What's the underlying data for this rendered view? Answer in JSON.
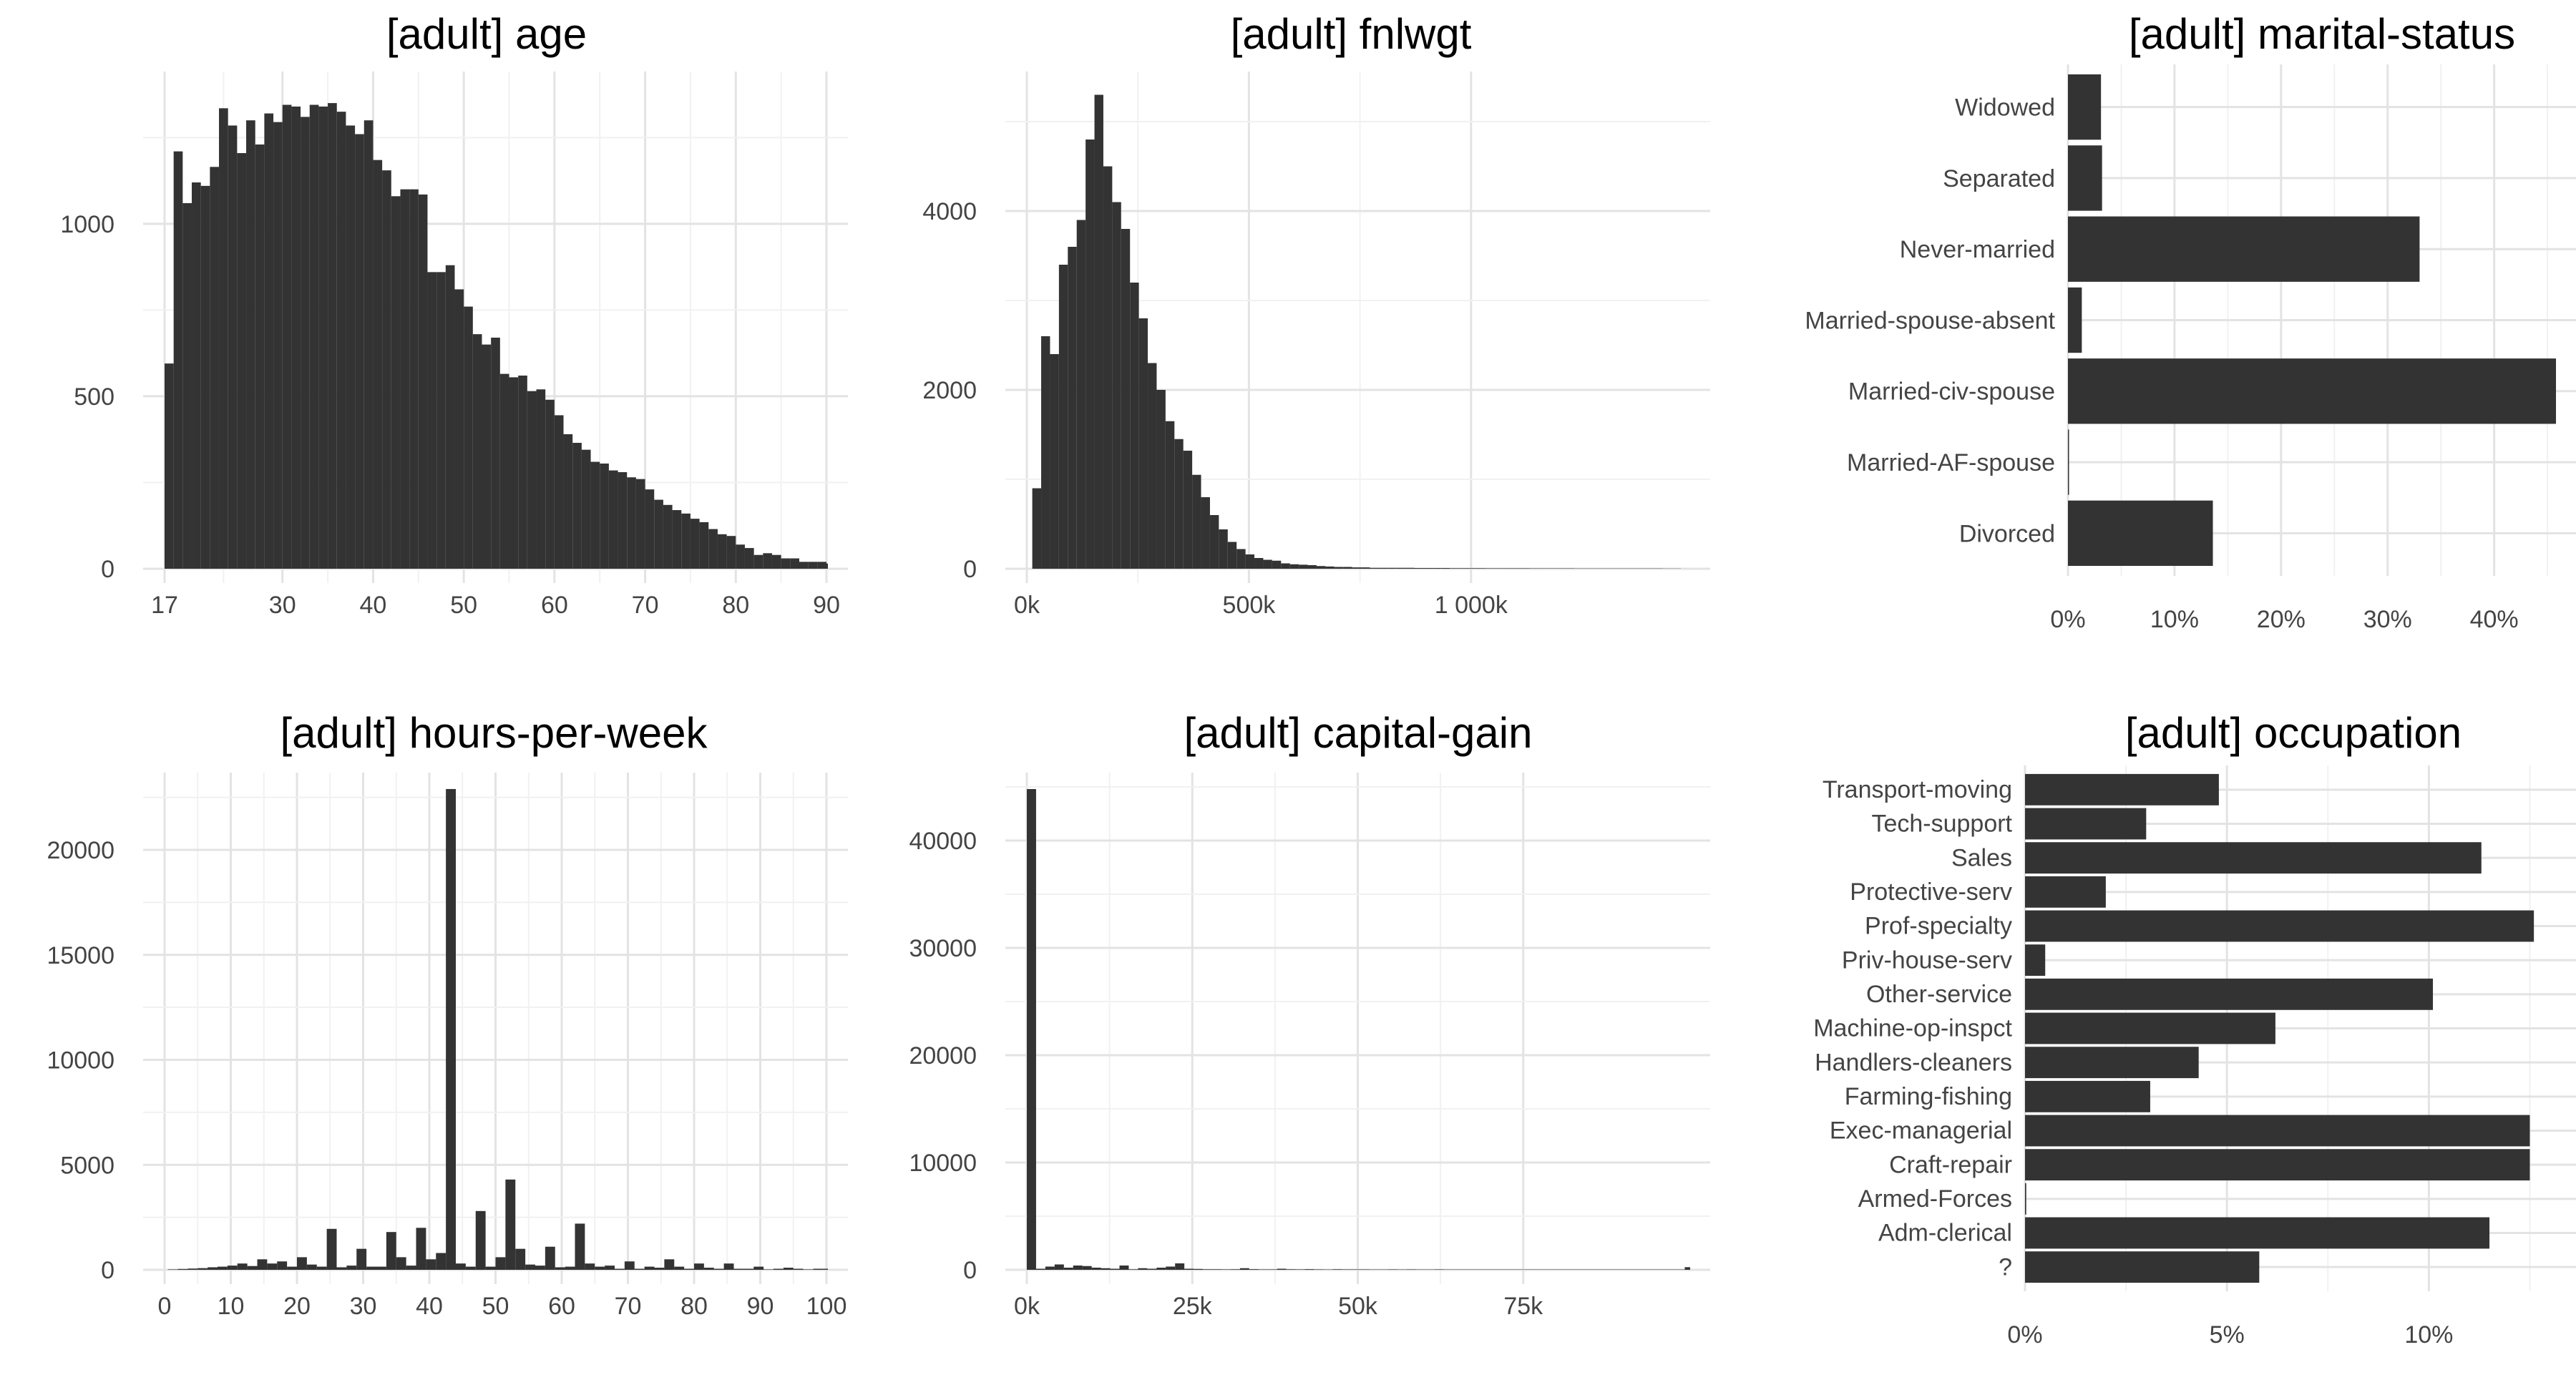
{
  "chart_data": [
    {
      "type": "bar",
      "title": "[adult] age",
      "xlabel": "",
      "ylabel": "",
      "bin_start": 17,
      "bin_width": 1,
      "values": [
        595,
        1210,
        1060,
        1120,
        1110,
        1165,
        1335,
        1285,
        1205,
        1300,
        1230,
        1320,
        1295,
        1345,
        1340,
        1310,
        1345,
        1340,
        1350,
        1325,
        1285,
        1260,
        1300,
        1185,
        1155,
        1080,
        1100,
        1100,
        1085,
        860,
        860,
        880,
        810,
        760,
        680,
        650,
        670,
        565,
        555,
        560,
        515,
        520,
        490,
        445,
        390,
        365,
        345,
        310,
        305,
        285,
        280,
        265,
        260,
        230,
        200,
        185,
        170,
        160,
        145,
        135,
        115,
        100,
        95,
        70,
        60,
        40,
        45,
        40,
        30,
        30,
        20,
        20,
        20,
        15,
        15,
        10,
        10,
        10,
        5,
        5,
        5,
        5,
        5,
        5,
        5,
        5,
        5,
        5,
        5,
        5,
        5,
        5,
        10,
        15
      ],
      "xlim": [
        17,
        90
      ],
      "ylim": [
        0,
        1400
      ],
      "xticks": [
        17,
        30,
        40,
        50,
        60,
        70,
        80,
        90
      ],
      "xtick_labels": [
        "17",
        "30",
        "40",
        "50",
        "60",
        "70",
        "80",
        "90"
      ],
      "yticks": [
        0,
        500,
        1000
      ],
      "ytick_labels": [
        "0",
        "500",
        "1000"
      ],
      "grid": true
    },
    {
      "type": "bar",
      "title": "[adult] fnlwgt",
      "xlabel": "",
      "ylabel": "",
      "bin_start": 12285,
      "bin_width": 20000,
      "values": [
        900,
        2600,
        2400,
        3400,
        3600,
        3900,
        4800,
        5300,
        4500,
        4100,
        3800,
        3200,
        2800,
        2300,
        2000,
        1650,
        1450,
        1320,
        1050,
        800,
        600,
        440,
        300,
        220,
        160,
        120,
        100,
        90,
        60,
        50,
        45,
        40,
        30,
        25,
        20,
        20,
        15,
        15,
        10,
        10,
        10,
        10,
        10,
        8,
        8,
        8,
        8,
        6,
        6,
        6,
        6,
        5,
        5,
        5,
        5,
        5,
        4,
        4,
        4,
        4,
        4,
        3,
        3,
        3,
        3,
        3,
        3,
        3,
        3,
        3,
        3,
        2,
        2
      ],
      "xlim": [
        0,
        1490000
      ],
      "ylim": [
        0,
        5400
      ],
      "xticks": [
        0,
        500000,
        1000000
      ],
      "xtick_labels": [
        "0k",
        "500k",
        "1 000k"
      ],
      "yticks": [
        0,
        2000,
        4000
      ],
      "ytick_labels": [
        "0",
        "2000",
        "4000"
      ],
      "grid": true
    },
    {
      "type": "bar",
      "orientation": "horizontal",
      "title": "[adult] marital-status",
      "xlabel": "",
      "ylabel": "",
      "categories": [
        "Divorced",
        "Married-AF-spouse",
        "Married-civ-spouse",
        "Married-spouse-absent",
        "Never-married",
        "Separated",
        "Widowed"
      ],
      "values": [
        13.6,
        0.1,
        45.8,
        1.3,
        33.0,
        3.2,
        3.1
      ],
      "unit": "%",
      "xlim": [
        0,
        46
      ],
      "xticks": [
        0,
        10,
        20,
        30,
        40
      ],
      "xtick_labels": [
        "0%",
        "10%",
        "20%",
        "30%",
        "40%"
      ],
      "grid": true
    },
    {
      "type": "bar",
      "title": "[adult] hours-per-week",
      "xlabel": "",
      "ylabel": "",
      "bin_start": 0.5,
      "bin_width": 1.5,
      "values": [
        20,
        40,
        60,
        80,
        120,
        150,
        200,
        300,
        180,
        500,
        300,
        400,
        150,
        600,
        250,
        150,
        1950,
        120,
        200,
        1000,
        150,
        150,
        1800,
        600,
        200,
        2000,
        500,
        800,
        22900,
        300,
        150,
        2800,
        150,
        600,
        4300,
        1000,
        250,
        200,
        1100,
        120,
        150,
        2200,
        300,
        150,
        200,
        50,
        400,
        50,
        150,
        100,
        500,
        150,
        50,
        300,
        100,
        50,
        300,
        50,
        50,
        150,
        20,
        50,
        100,
        50,
        20,
        50,
        50,
        20,
        100,
        50,
        20,
        50,
        80,
        50,
        20,
        20,
        20,
        20,
        50,
        20,
        20,
        20,
        20,
        200
      ],
      "xlim": [
        0,
        100
      ],
      "ylim": [
        0,
        23000
      ],
      "xticks": [
        0,
        10,
        20,
        30,
        40,
        50,
        60,
        70,
        80,
        90,
        100
      ],
      "xtick_labels": [
        "0",
        "10",
        "20",
        "30",
        "40",
        "50",
        "60",
        "70",
        "80",
        "90",
        "100"
      ],
      "yticks": [
        0,
        5000,
        10000,
        15000,
        20000
      ],
      "ytick_labels": [
        "0",
        "5000",
        "10000",
        "15000",
        "20000"
      ],
      "grid": true
    },
    {
      "type": "bar",
      "title": "[adult] capital-gain",
      "xlabel": "",
      "ylabel": "",
      "bin_start": 0,
      "bin_width": 1400,
      "values": [
        44800,
        100,
        300,
        500,
        200,
        400,
        350,
        200,
        150,
        100,
        400,
        50,
        150,
        100,
        200,
        300,
        600,
        100,
        80,
        50,
        50,
        40,
        50,
        150,
        60,
        40,
        40,
        100,
        50,
        40,
        60,
        40,
        30,
        50,
        40,
        40,
        40,
        30,
        30,
        40,
        30,
        40,
        30,
        30,
        40,
        30,
        30,
        30,
        30,
        30,
        30,
        30,
        30,
        30,
        30,
        30,
        30,
        30,
        30,
        30,
        30,
        30,
        30,
        30,
        30,
        30,
        30,
        30,
        30,
        30,
        30,
        244
      ],
      "xlim": [
        0,
        99999
      ],
      "ylim": [
        0,
        45000
      ],
      "xticks": [
        0,
        25000,
        50000,
        75000
      ],
      "xtick_labels": [
        "0k",
        "25k",
        "50k",
        "75k"
      ],
      "yticks": [
        0,
        10000,
        20000,
        30000,
        40000
      ],
      "ytick_labels": [
        "0",
        "10000",
        "20000",
        "30000",
        "40000"
      ],
      "grid": true
    },
    {
      "type": "bar",
      "orientation": "horizontal",
      "title": "[adult] occupation",
      "xlabel": "",
      "ylabel": "",
      "categories": [
        "?",
        "Adm-clerical",
        "Armed-Forces",
        "Craft-repair",
        "Exec-managerial",
        "Farming-fishing",
        "Handlers-cleaners",
        "Machine-op-inspct",
        "Other-service",
        "Priv-house-serv",
        "Prof-specialty",
        "Protective-serv",
        "Sales",
        "Tech-support",
        "Transport-moving"
      ],
      "values": [
        5.8,
        11.5,
        0.03,
        12.5,
        12.5,
        3.1,
        4.3,
        6.2,
        10.1,
        0.5,
        12.6,
        2.0,
        11.3,
        3.0,
        4.8
      ],
      "unit": "%",
      "xlim": [
        0,
        13.2
      ],
      "xticks": [
        0,
        5,
        10
      ],
      "xtick_labels": [
        "0%",
        "5%",
        "10%"
      ],
      "grid": true
    }
  ]
}
